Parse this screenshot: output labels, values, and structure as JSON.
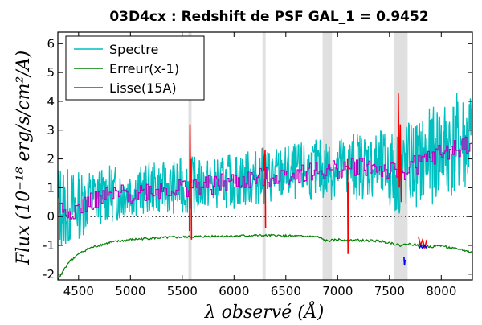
{
  "chart_data": {
    "type": "line",
    "title": "03D4cx : Redshift de PSF GAL_1 = 0.9452",
    "xlabel": "λ observé (Å)",
    "ylabel": "Flux (10⁻¹⁸ erg/s/cm²/A)",
    "xlim": [
      4300,
      8300
    ],
    "ylim": [
      -2.2,
      6.4
    ],
    "xticks": [
      4500,
      5000,
      5500,
      6000,
      6500,
      7000,
      7500,
      8000
    ],
    "yticks": [
      -2,
      -1,
      0,
      1,
      2,
      3,
      4,
      5,
      6
    ],
    "grid": false,
    "legend_position": "top-left",
    "zero_line": 0,
    "shaded_bands": [
      [
        5560,
        5590
      ],
      [
        6275,
        6305
      ],
      [
        6855,
        6945
      ],
      [
        7545,
        7675
      ]
    ],
    "series": [
      {
        "name": "Spectre",
        "color": "#00bfbf",
        "x": [
          4300,
          4400,
          4500,
          4600,
          4700,
          4800,
          4900,
          5000,
          5100,
          5200,
          5300,
          5400,
          5500,
          5600,
          5700,
          5800,
          5900,
          6000,
          6100,
          6200,
          6300,
          6400,
          6500,
          6600,
          6700,
          6800,
          6900,
          7000,
          7100,
          7200,
          7300,
          7400,
          7500,
          7600,
          7700,
          7800,
          7900,
          8000,
          8100,
          8200,
          8300
        ],
        "values": [
          0.4,
          0.3,
          0.4,
          0.6,
          0.7,
          0.8,
          0.8,
          0.9,
          0.9,
          1.0,
          1.0,
          1.0,
          1.05,
          1.1,
          1.1,
          1.15,
          1.2,
          1.25,
          1.3,
          1.35,
          1.4,
          1.45,
          1.5,
          1.55,
          1.6,
          1.6,
          1.65,
          1.7,
          1.75,
          1.8,
          1.8,
          1.7,
          1.6,
          1.5,
          1.8,
          1.9,
          2.1,
          2.3,
          2.4,
          2.5,
          2.6
        ],
        "noise_amplitude": [
          1.6,
          1.4,
          1.2,
          1.1,
          1.0,
          1.0,
          1.0,
          0.9,
          0.9,
          0.9,
          0.9,
          0.9,
          1.0,
          1.0,
          0.9,
          0.9,
          0.9,
          1.0,
          1.0,
          1.0,
          1.0,
          1.0,
          1.0,
          1.0,
          1.0,
          1.1,
          1.1,
          1.1,
          1.2,
          1.2,
          1.2,
          1.3,
          1.4,
          1.6,
          1.6,
          1.6,
          1.7,
          1.8,
          1.8,
          1.9,
          2.0
        ]
      },
      {
        "name": "Erreur(x-1)",
        "color": "#008000",
        "x": [
          4300,
          4350,
          4400,
          4500,
          4600,
          4700,
          4800,
          5000,
          5200,
          5400,
          5600,
          5800,
          6000,
          6200,
          6400,
          6600,
          6800,
          6900,
          7000,
          7200,
          7400,
          7500,
          7600,
          7700,
          7800,
          7900,
          8000,
          8100,
          8200,
          8300
        ],
        "values": [
          -2.2,
          -1.9,
          -1.6,
          -1.3,
          -1.1,
          -1.0,
          -0.9,
          -0.8,
          -0.75,
          -0.72,
          -0.7,
          -0.68,
          -0.67,
          -0.66,
          -0.66,
          -0.68,
          -0.7,
          -0.85,
          -0.8,
          -0.82,
          -0.85,
          -0.9,
          -1.0,
          -0.95,
          -1.0,
          -1.05,
          -1.0,
          -1.1,
          -1.15,
          -1.25
        ]
      },
      {
        "name": "Lisse(15A)",
        "color": "#bf00bf",
        "x": [
          4300,
          4400,
          4500,
          4600,
          4700,
          4800,
          4900,
          5000,
          5100,
          5200,
          5300,
          5400,
          5500,
          5600,
          5700,
          5800,
          5900,
          6000,
          6100,
          6200,
          6300,
          6400,
          6500,
          6600,
          6700,
          6800,
          6900,
          7000,
          7100,
          7200,
          7300,
          7400,
          7500,
          7600,
          7700,
          7800,
          7900,
          8000,
          8100,
          8200,
          8300
        ],
        "values": [
          0.3,
          0.2,
          0.3,
          0.5,
          0.6,
          0.7,
          0.75,
          0.8,
          0.85,
          0.9,
          0.95,
          0.95,
          1.0,
          1.05,
          1.05,
          1.1,
          1.15,
          1.2,
          1.25,
          1.3,
          1.35,
          1.4,
          1.45,
          1.5,
          1.55,
          1.55,
          1.6,
          1.65,
          1.7,
          1.75,
          1.75,
          1.65,
          1.55,
          1.45,
          1.75,
          1.85,
          2.05,
          2.2,
          2.3,
          2.45,
          2.55
        ],
        "noise_amplitude": 0.35
      }
    ],
    "legend": [
      {
        "label": "Spectre",
        "color": "#00bfbf"
      },
      {
        "label": "Erreur(x-1)",
        "color": "#008000"
      },
      {
        "label": "Lisse(15A)",
        "color": "#bf00bf"
      }
    ],
    "masked_segments_color": "#ff0000",
    "masked_segments": [
      {
        "x": [
          5570,
          5575,
          5580,
          5585,
          5590
        ],
        "values": [
          -0.5,
          3.2,
          1.0,
          2.0,
          -0.8
        ]
      },
      {
        "x": [
          6280,
          6290,
          6300,
          6305
        ],
        "values": [
          2.4,
          1.6,
          2.3,
          -0.4
        ]
      },
      {
        "x": [
          7095,
          7100,
          7105
        ],
        "values": [
          2.0,
          -1.3,
          1.2
        ]
      },
      {
        "x": [
          7585,
          7595,
          7605,
          7615
        ],
        "values": [
          4.3,
          1.0,
          3.2,
          0.5
        ]
      },
      {
        "x": [
          7780,
          7800,
          7820,
          7840,
          7860
        ],
        "values": [
          -0.7,
          -1.0,
          -0.8,
          -1.1,
          -0.8
        ]
      }
    ],
    "blue_marks": [
      {
        "x": [
          7640,
          7645,
          7650
        ],
        "values": [
          -1.4,
          -1.7,
          -1.5
        ]
      },
      {
        "x": [
          7790,
          7800,
          7820,
          7840,
          7860
        ],
        "values": [
          -1.1,
          -1.0,
          -1.1,
          -1.0,
          -1.1
        ]
      }
    ]
  }
}
